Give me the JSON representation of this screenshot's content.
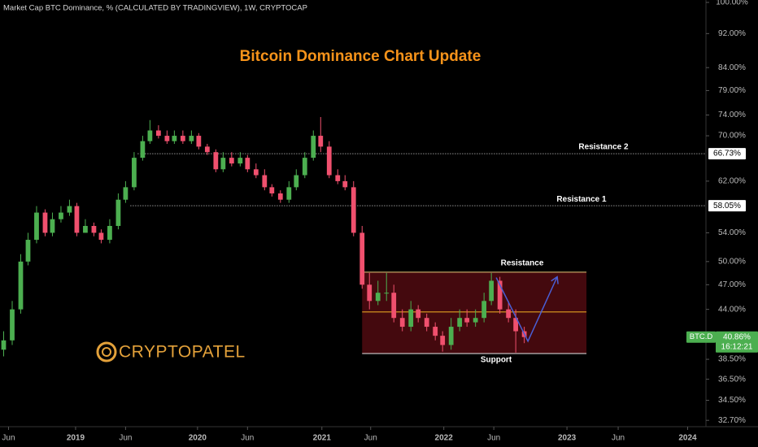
{
  "chart_data": {
    "type": "candlestick",
    "header": "Market Cap BTC Dominance, % (CALCULATED BY TRADINGVIEW), 1W, CRYPTOCAP",
    "title": "Bitcoin Dominance Chart Update",
    "watermark": "CRYPTOPATEL",
    "log_scale": true,
    "up_color": "#4caf50",
    "down_color": "#f0506e",
    "xlim": [
      2018.38,
      2024.17
    ],
    "xticks": [
      {
        "value": 2018.45,
        "label": "Jun"
      },
      {
        "value": 2019,
        "label": "2019"
      },
      {
        "value": 2019.41,
        "label": "Jun"
      },
      {
        "value": 2020,
        "label": "2020"
      },
      {
        "value": 2020.41,
        "label": "Jun"
      },
      {
        "value": 2021.02,
        "label": "2021"
      },
      {
        "value": 2021.42,
        "label": "Jun"
      },
      {
        "value": 2022.02,
        "label": "2022"
      },
      {
        "value": 2022.43,
        "label": "Jun"
      },
      {
        "value": 2023.03,
        "label": "2023"
      },
      {
        "value": 2023.45,
        "label": "Jun"
      },
      {
        "value": 2024.02,
        "label": "2024"
      }
    ],
    "ylim": [
      32.36,
      100.65
    ],
    "yticks": [
      {
        "value": 100,
        "label": "100.00%"
      },
      {
        "value": 92,
        "label": "92.00%"
      },
      {
        "value": 84,
        "label": "84.00%"
      },
      {
        "value": 79,
        "label": "79.00%"
      },
      {
        "value": 74,
        "label": "74.00%"
      },
      {
        "value": 70,
        "label": "70.00%"
      },
      {
        "value": 62,
        "label": "62.00%"
      },
      {
        "value": 54,
        "label": "54.00%"
      },
      {
        "value": 50,
        "label": "50.00%"
      },
      {
        "value": 47,
        "label": "47.00%"
      },
      {
        "value": 44,
        "label": "44.00%"
      },
      {
        "value": 38.5,
        "label": "38.50%"
      },
      {
        "value": 36.5,
        "label": "36.50%"
      },
      {
        "value": 34.5,
        "label": "34.50%"
      },
      {
        "value": 32.7,
        "label": "32.70%"
      }
    ],
    "x": [
      2018.41,
      2018.48,
      2018.55,
      2018.61,
      2018.68,
      2018.75,
      2018.81,
      2018.88,
      2018.95,
      2019.01,
      2019.08,
      2019.15,
      2019.21,
      2019.28,
      2019.35,
      2019.41,
      2019.48,
      2019.55,
      2019.61,
      2019.68,
      2019.75,
      2019.81,
      2019.88,
      2019.95,
      2020.01,
      2020.08,
      2020.15,
      2020.21,
      2020.28,
      2020.35,
      2020.41,
      2020.48,
      2020.55,
      2020.61,
      2020.68,
      2020.75,
      2020.81,
      2020.88,
      2020.95,
      2021.01,
      2021.08,
      2021.15,
      2021.21,
      2021.28,
      2021.35,
      2021.41,
      2021.48,
      2021.55,
      2021.61,
      2021.68,
      2021.75,
      2021.81,
      2021.88,
      2021.95,
      2022.01,
      2022.08,
      2022.15,
      2022.21,
      2022.28,
      2022.35,
      2022.41,
      2022.48,
      2022.55,
      2022.61,
      2022.68
    ],
    "open": [
      39.5,
      40.5,
      44,
      50,
      53,
      57,
      54,
      56,
      57,
      58,
      54,
      55,
      54,
      53,
      55,
      59,
      61,
      66,
      69,
      71,
      70,
      69,
      70,
      69,
      70,
      68,
      67,
      64,
      66,
      65,
      66,
      64,
      63,
      61,
      60,
      59,
      61,
      63,
      66,
      70,
      68,
      63,
      62,
      61,
      54,
      47,
      45,
      46,
      46,
      43,
      42,
      44,
      43,
      42,
      41,
      40,
      42,
      43,
      42.5,
      43,
      45,
      47.5,
      44,
      43,
      41.5
    ],
    "high": [
      41.5,
      45,
      51,
      54,
      58,
      57.5,
      57,
      58,
      59,
      58.5,
      56,
      55.5,
      54.5,
      56,
      60,
      62,
      67,
      70,
      73,
      72,
      71,
      71,
      71,
      71,
      70.5,
      68.5,
      67.5,
      67,
      67,
      67,
      66.5,
      65,
      64,
      61.5,
      60.5,
      62,
      64,
      67,
      71,
      73.6,
      69,
      64,
      63,
      62,
      55,
      48.5,
      47.5,
      48.5,
      47,
      44,
      45,
      44.5,
      43.5,
      42.5,
      41.5,
      43,
      44,
      44,
      44,
      46,
      48.5,
      48,
      45,
      44,
      42
    ],
    "low": [
      38.8,
      40,
      43.5,
      49.5,
      52.5,
      53.5,
      53.5,
      55.5,
      56.5,
      53.5,
      54,
      53.5,
      52.5,
      52.5,
      54.5,
      58.5,
      60.5,
      65.5,
      68.5,
      69.5,
      68.5,
      68.5,
      68.5,
      68.5,
      67.5,
      66.5,
      63.5,
      63.5,
      64.5,
      64.5,
      63.5,
      62.5,
      60.5,
      59.5,
      58.5,
      58.5,
      60.5,
      62.5,
      65.5,
      67,
      62.5,
      61.5,
      60.5,
      53.5,
      46.5,
      44,
      44.5,
      45,
      42.5,
      41.5,
      41.5,
      42.5,
      41.5,
      40.5,
      39.3,
      39.5,
      41.5,
      42,
      42,
      42.5,
      44.5,
      43.5,
      42.5,
      39.2,
      40.2
    ],
    "close": [
      40.5,
      44,
      50,
      53,
      57,
      54,
      56,
      57,
      58,
      54,
      55,
      54,
      53,
      55,
      59,
      61,
      66,
      69,
      71,
      70,
      69,
      70,
      69,
      70,
      68,
      67,
      64,
      66,
      65,
      66,
      64,
      63,
      61,
      60,
      59,
      61,
      63,
      66,
      70,
      68,
      63,
      62,
      61,
      54,
      47,
      45,
      46,
      46,
      43,
      42,
      44,
      43,
      42,
      41,
      40,
      42,
      43,
      42.5,
      43,
      45,
      47.5,
      44,
      43,
      41.5,
      40.86
    ],
    "levels": [
      {
        "name": "Resistance 2",
        "value": 66.73,
        "label": "66.73%",
        "x_start": 2019.51
      },
      {
        "name": "Resistance 1",
        "value": 58.05,
        "label": "58.05%",
        "x_start": 2019.45
      }
    ],
    "range_box": {
      "x_start": 2021.35,
      "x_end": 2023.19,
      "top": 48.6,
      "bottom": 39.1,
      "mid": 43.7,
      "top_label": "Resistance",
      "bottom_label": "Support"
    },
    "arrow": {
      "x": [
        2022.45,
        2022.71,
        2022.95
      ],
      "y": [
        47.9,
        40.4,
        48.0
      ],
      "color": "#4a5fd6"
    },
    "last": {
      "symbol": "BTC.D",
      "value": 40.86,
      "label": "40.86%",
      "countdown": "16:12:21"
    }
  }
}
